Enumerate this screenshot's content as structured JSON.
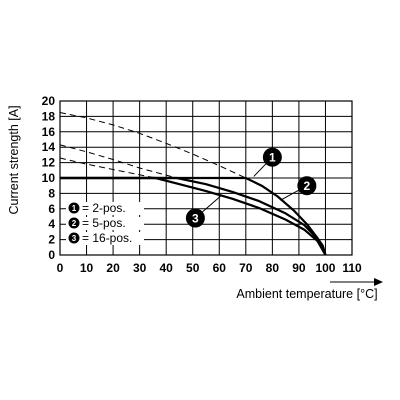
{
  "chart_data": {
    "type": "line",
    "xlabel": "Ambient temperature [°C]",
    "ylabel": "Current strength [A]",
    "xlim": [
      0,
      110
    ],
    "ylim": [
      0,
      20
    ],
    "xticks": [
      0,
      10,
      20,
      30,
      40,
      50,
      60,
      70,
      80,
      90,
      100,
      110
    ],
    "yticks": [
      0,
      2,
      4,
      6,
      8,
      10,
      12,
      14,
      16,
      18,
      20
    ],
    "grid": true,
    "legend_position": "left",
    "series": [
      {
        "name": "2-pos.",
        "marker": "1",
        "x": [
          0,
          70,
          76,
          82,
          88,
          93,
          97,
          99,
          100
        ],
        "y": [
          10,
          10,
          9.0,
          7.6,
          5.8,
          4.0,
          2.2,
          1.2,
          0
        ],
        "extension_x": [
          0,
          10,
          20,
          30,
          40,
          50,
          60,
          70
        ],
        "extension_y": [
          18.5,
          17.8,
          16.9,
          15.8,
          14.5,
          13.1,
          11.6,
          10
        ]
      },
      {
        "name": "5-pos.",
        "marker": "2",
        "x": [
          0,
          44,
          55,
          65,
          75,
          85,
          92,
          97,
          100
        ],
        "y": [
          10,
          10,
          9.2,
          8.2,
          7.0,
          5.4,
          3.9,
          2.1,
          0
        ],
        "extension_x": [
          0,
          10,
          20,
          30,
          44
        ],
        "extension_y": [
          14.3,
          13.4,
          12.4,
          11.3,
          10
        ]
      },
      {
        "name": "16-pos.",
        "marker": "3",
        "x": [
          0,
          36,
          45,
          55,
          65,
          75,
          85,
          92,
          97,
          100
        ],
        "y": [
          10,
          10,
          9.2,
          8.3,
          7.3,
          6.1,
          4.6,
          3.3,
          1.8,
          0
        ],
        "extension_x": [
          0,
          10,
          20,
          36
        ],
        "extension_y": [
          12.6,
          11.8,
          11.1,
          10
        ]
      }
    ],
    "legend": [
      {
        "marker": "1",
        "label": "= 2-pos."
      },
      {
        "marker": "2",
        "label": "= 5-pos."
      },
      {
        "marker": "3",
        "label": "= 16-pos."
      }
    ],
    "annotations": [
      {
        "marker": "1",
        "x": 80,
        "y": 12.7,
        "points_to": [
          73,
          10.2
        ]
      },
      {
        "marker": "2",
        "x": 93,
        "y": 9.0,
        "points_to": [
          83,
          7.1
        ]
      },
      {
        "marker": "3",
        "x": 51,
        "y": 4.8,
        "points_to": [
          61,
          7.8
        ]
      }
    ]
  }
}
